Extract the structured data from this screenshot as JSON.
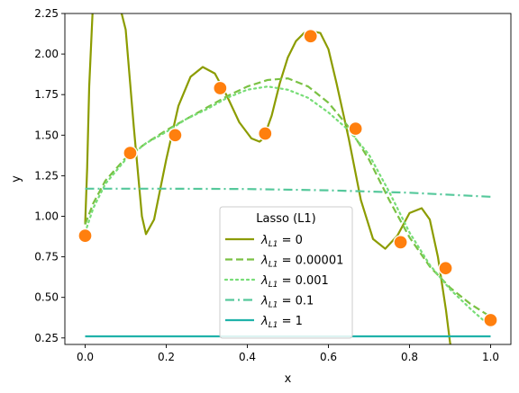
{
  "chart_data": {
    "type": "line",
    "xlabel": "x",
    "ylabel": "y",
    "xlim": [
      -0.05,
      1.05
    ],
    "ylim": [
      0.21,
      2.25
    ],
    "xticks": [
      "0.0",
      "0.2",
      "0.4",
      "0.6",
      "0.8",
      "1.0"
    ],
    "xtick_values": [
      0.0,
      0.2,
      0.4,
      0.6,
      0.8,
      1.0
    ],
    "yticks": [
      "0.25",
      "0.50",
      "0.75",
      "1.00",
      "1.25",
      "1.50",
      "1.75",
      "2.00",
      "2.25"
    ],
    "ytick_values": [
      0.25,
      0.5,
      0.75,
      1.0,
      1.25,
      1.5,
      1.75,
      2.0,
      2.25
    ],
    "grid": false,
    "legend": {
      "title": "Lasso (L1)",
      "placement": "lower-center"
    },
    "scatter": {
      "color": "#ff7f0e",
      "points": [
        {
          "x": 0.0,
          "y": 0.88
        },
        {
          "x": 0.111,
          "y": 1.39
        },
        {
          "x": 0.222,
          "y": 1.5
        },
        {
          "x": 0.333,
          "y": 1.79
        },
        {
          "x": 0.444,
          "y": 1.51
        },
        {
          "x": 0.556,
          "y": 2.11
        },
        {
          "x": 0.667,
          "y": 1.54
        },
        {
          "x": 0.778,
          "y": 0.84
        },
        {
          "x": 0.889,
          "y": 0.68
        },
        {
          "x": 1.0,
          "y": 0.36
        }
      ]
    },
    "series": [
      {
        "name": "λ_L1 = 0",
        "label_main": "λ",
        "label_sub": "L1",
        "label_rest": " = 0",
        "color": "#8c9c00",
        "dash": "solid",
        "x": [
          0.0,
          0.005,
          0.01,
          0.02,
          0.03,
          0.05,
          0.08,
          0.1,
          0.12,
          0.14,
          0.15,
          0.17,
          0.2,
          0.23,
          0.26,
          0.29,
          0.32,
          0.35,
          0.38,
          0.41,
          0.43,
          0.44,
          0.46,
          0.48,
          0.5,
          0.52,
          0.54,
          0.56,
          0.58,
          0.6,
          0.62,
          0.65,
          0.68,
          0.71,
          0.74,
          0.77,
          0.8,
          0.83,
          0.85,
          0.87,
          0.89,
          0.9,
          0.91,
          0.915
        ],
        "y": [
          0.95,
          1.3,
          1.8,
          2.35,
          2.35,
          2.35,
          2.35,
          2.15,
          1.55,
          1.0,
          0.89,
          0.98,
          1.35,
          1.68,
          1.86,
          1.92,
          1.88,
          1.74,
          1.58,
          1.48,
          1.46,
          1.48,
          1.62,
          1.82,
          1.98,
          2.08,
          2.13,
          2.14,
          2.13,
          2.03,
          1.82,
          1.48,
          1.1,
          0.86,
          0.8,
          0.88,
          1.02,
          1.05,
          0.98,
          0.75,
          0.42,
          0.22,
          0.12,
          0.05
        ]
      },
      {
        "name": "λ_L1 = 0.00001",
        "label_main": "λ",
        "label_sub": "L1",
        "label_rest": " = 0.00001",
        "color": "#7ac143",
        "dash": "dashed",
        "x": [
          0.0,
          0.02,
          0.05,
          0.1,
          0.15,
          0.2,
          0.25,
          0.3,
          0.35,
          0.4,
          0.45,
          0.5,
          0.55,
          0.6,
          0.65,
          0.7,
          0.75,
          0.8,
          0.85,
          0.9,
          0.95,
          1.0
        ],
        "y": [
          0.95,
          1.08,
          1.22,
          1.36,
          1.45,
          1.53,
          1.6,
          1.67,
          1.74,
          1.8,
          1.84,
          1.85,
          1.8,
          1.7,
          1.55,
          1.35,
          1.1,
          0.87,
          0.69,
          0.56,
          0.46,
          0.38
        ]
      },
      {
        "name": "λ_L1 = 0.001",
        "label_main": "λ",
        "label_sub": "L1",
        "label_rest": " = 0.001",
        "color": "#77dd77",
        "dash": "dotted",
        "x": [
          0.0,
          0.02,
          0.05,
          0.1,
          0.15,
          0.2,
          0.25,
          0.3,
          0.35,
          0.4,
          0.45,
          0.5,
          0.55,
          0.6,
          0.65,
          0.7,
          0.75,
          0.8,
          0.85,
          0.9,
          0.95,
          1.0
        ],
        "y": [
          0.9,
          1.05,
          1.2,
          1.35,
          1.45,
          1.52,
          1.6,
          1.66,
          1.73,
          1.78,
          1.8,
          1.78,
          1.73,
          1.64,
          1.53,
          1.38,
          1.15,
          0.9,
          0.7,
          0.55,
          0.43,
          0.32
        ]
      },
      {
        "name": "λ_L1 = 0.1",
        "label_main": "λ",
        "label_sub": "L1",
        "label_rest": " = 0.1",
        "color": "#55c89b",
        "dash": "dashdot",
        "x": [
          0.0,
          0.2,
          0.4,
          0.6,
          0.8,
          1.0
        ],
        "y": [
          1.17,
          1.17,
          1.168,
          1.16,
          1.145,
          1.12
        ]
      },
      {
        "name": "λ_L1 = 1",
        "label_main": "λ",
        "label_sub": "L1",
        "label_rest": " = 1",
        "color": "#20b2aa",
        "dash": "solid",
        "x": [
          0.0,
          1.0
        ],
        "y": [
          0.26,
          0.26
        ]
      }
    ]
  }
}
